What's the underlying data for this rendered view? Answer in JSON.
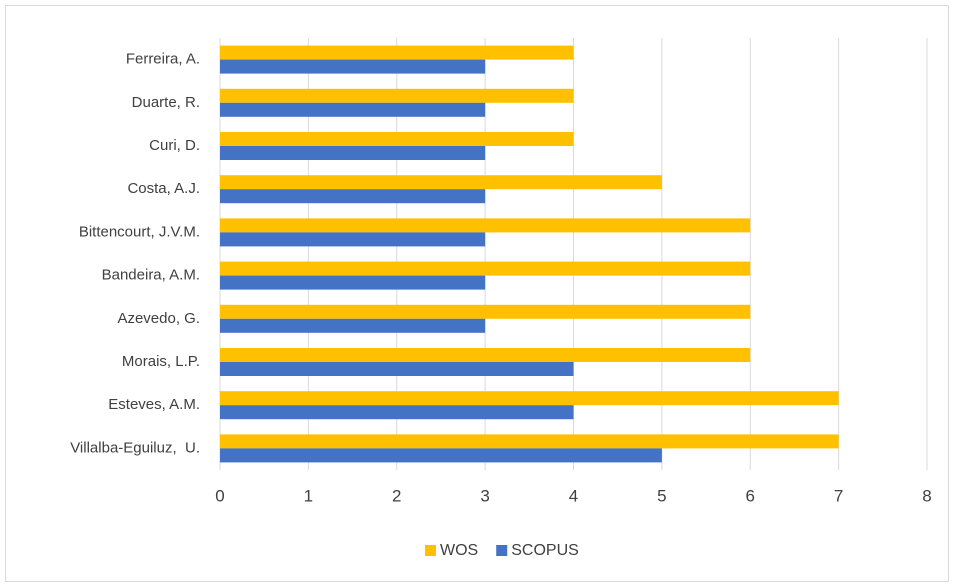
{
  "chart_data": {
    "type": "bar",
    "orientation": "horizontal",
    "categories": [
      "Ferreira, A.",
      "Duarte, R.",
      "Curi, D.",
      "Costa, A.J.",
      "Bittencourt, J.V.M.",
      "Bandeira, A.M.",
      "Azevedo, G.",
      "Morais, L.P.",
      "Esteves, A.M.",
      "Villalba-Eguiluz,  U."
    ],
    "series": [
      {
        "name": "WOS",
        "color": "#ffc000",
        "values": [
          4,
          4,
          4,
          5,
          6,
          6,
          6,
          6,
          7,
          7
        ]
      },
      {
        "name": "SCOPUS",
        "color": "#4472c4",
        "values": [
          3,
          3,
          3,
          3,
          3,
          3,
          3,
          4,
          4,
          5
        ]
      }
    ],
    "xlim": [
      0,
      8
    ],
    "xticks": [
      0,
      1,
      2,
      3,
      4,
      5,
      6,
      7,
      8
    ],
    "grid": true,
    "legend": "bottom"
  }
}
